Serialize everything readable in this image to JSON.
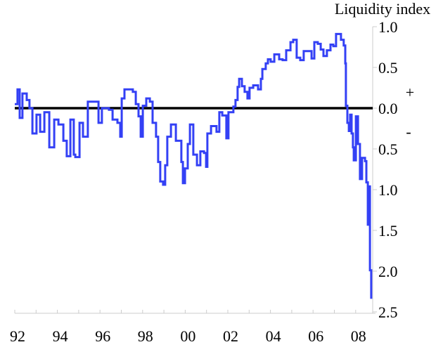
{
  "chart_data": {
    "type": "line",
    "title": "",
    "ylabel": "Liquidity index",
    "xlabel": "",
    "x_tick_labels": [
      "92",
      "94",
      "96",
      "98",
      "00",
      "02",
      "04",
      "06",
      "08"
    ],
    "x_ticks": [
      1992,
      1994,
      1996,
      1998,
      2000,
      2002,
      2004,
      2006,
      2008
    ],
    "xlim": [
      1992,
      2008.8
    ],
    "y_tick_labels": [
      "1.0",
      "0.5",
      "0.0",
      "0.5",
      "1.0",
      "1.5",
      "2.0",
      "2.5"
    ],
    "y_ticks": [
      1.0,
      0.5,
      0.0,
      -0.5,
      -1.0,
      -1.5,
      -2.0,
      -2.5
    ],
    "ylim": [
      -2.5,
      1.0
    ],
    "y_axis_side": "right",
    "sign_labels": {
      "plus": "+",
      "minus": "-"
    },
    "reference_line": 0,
    "grid": false,
    "colors": {
      "series": "#3340f5",
      "reference_line": "#000000",
      "axis": "#cccccc"
    },
    "series": [
      {
        "x": [
          1992.0,
          1992.13,
          1992.23,
          1992.36,
          1992.56,
          1992.69,
          1992.83,
          1993.02,
          1993.19,
          1993.39,
          1993.62,
          1993.85,
          1994.05,
          1994.28,
          1994.44,
          1994.61,
          1994.77,
          1994.84,
          1995.04,
          1995.2,
          1995.43,
          1995.6,
          1995.76,
          1995.93,
          1996.09,
          1996.42,
          1996.59,
          1996.82,
          1996.95,
          1997.02,
          1997.15,
          1997.31,
          1997.54,
          1997.68,
          1997.81,
          1997.91,
          1998.01,
          1998.17,
          1998.34,
          1998.47,
          1998.63,
          1998.73,
          1998.83,
          1998.96,
          1999.06,
          1999.16,
          1999.33,
          1999.56,
          1999.72,
          1999.82,
          1999.89,
          1999.99,
          2000.12,
          2000.22,
          2000.38,
          2000.55,
          2000.71,
          2000.88,
          2000.98,
          2001.04,
          2001.21,
          2001.47,
          2001.6,
          2001.74,
          2001.93,
          2002.03,
          2002.26,
          2002.36,
          2002.46,
          2002.53,
          2002.66,
          2002.79,
          2002.92,
          2003.02,
          2003.19,
          2003.42,
          2003.55,
          2003.62,
          2003.78,
          2003.88,
          2004.01,
          2004.18,
          2004.41,
          2004.57,
          2004.74,
          2004.94,
          2005.07,
          2005.23,
          2005.4,
          2005.56,
          2005.76,
          2005.93,
          2006.06,
          2006.22,
          2006.36,
          2006.49,
          2006.65,
          2006.82,
          2006.95,
          2007.08,
          2007.21,
          2007.31,
          2007.44,
          2007.51,
          2007.54,
          2007.61,
          2007.68,
          2007.74,
          2007.81,
          2007.87,
          2007.91,
          2008.01,
          2008.11,
          2008.2,
          2008.3,
          2008.44,
          2008.5,
          2008.57,
          2008.64,
          2008.67,
          2008.73
        ],
        "values": [
          0.05,
          0.23,
          -0.12,
          0.18,
          0.1,
          0.0,
          -0.31,
          -0.08,
          -0.29,
          -0.05,
          -0.48,
          -0.14,
          -0.2,
          -0.4,
          -0.59,
          -0.14,
          -0.57,
          -0.6,
          -0.18,
          -0.35,
          0.08,
          0.08,
          0.08,
          -0.18,
          0.0,
          -0.02,
          -0.14,
          -0.18,
          -0.35,
          0.12,
          0.23,
          0.23,
          0.2,
          0.05,
          -0.1,
          -0.35,
          0.03,
          0.12,
          0.08,
          -0.18,
          -0.35,
          -0.66,
          -0.9,
          -0.94,
          -0.7,
          -0.35,
          -0.2,
          -0.4,
          -0.4,
          -0.66,
          -0.92,
          -0.74,
          -0.44,
          -0.2,
          -0.57,
          -0.7,
          -0.53,
          -0.55,
          -0.72,
          -0.31,
          -0.22,
          -0.29,
          -0.05,
          -0.09,
          -0.37,
          -0.05,
          0.02,
          0.1,
          0.26,
          0.36,
          0.27,
          0.2,
          0.12,
          0.25,
          0.28,
          0.23,
          0.36,
          0.48,
          0.55,
          0.6,
          0.57,
          0.66,
          0.6,
          0.59,
          0.71,
          0.81,
          0.84,
          0.62,
          0.59,
          0.7,
          0.7,
          0.61,
          0.81,
          0.79,
          0.72,
          0.64,
          0.71,
          0.78,
          0.76,
          0.91,
          0.91,
          0.84,
          0.77,
          0.55,
          0.03,
          -0.18,
          -0.28,
          -0.08,
          -0.31,
          -0.48,
          -0.64,
          -0.1,
          -0.44,
          -0.87,
          -0.61,
          -0.65,
          -0.91,
          -1.43,
          -0.96,
          -1.99,
          -2.34
        ]
      }
    ]
  }
}
